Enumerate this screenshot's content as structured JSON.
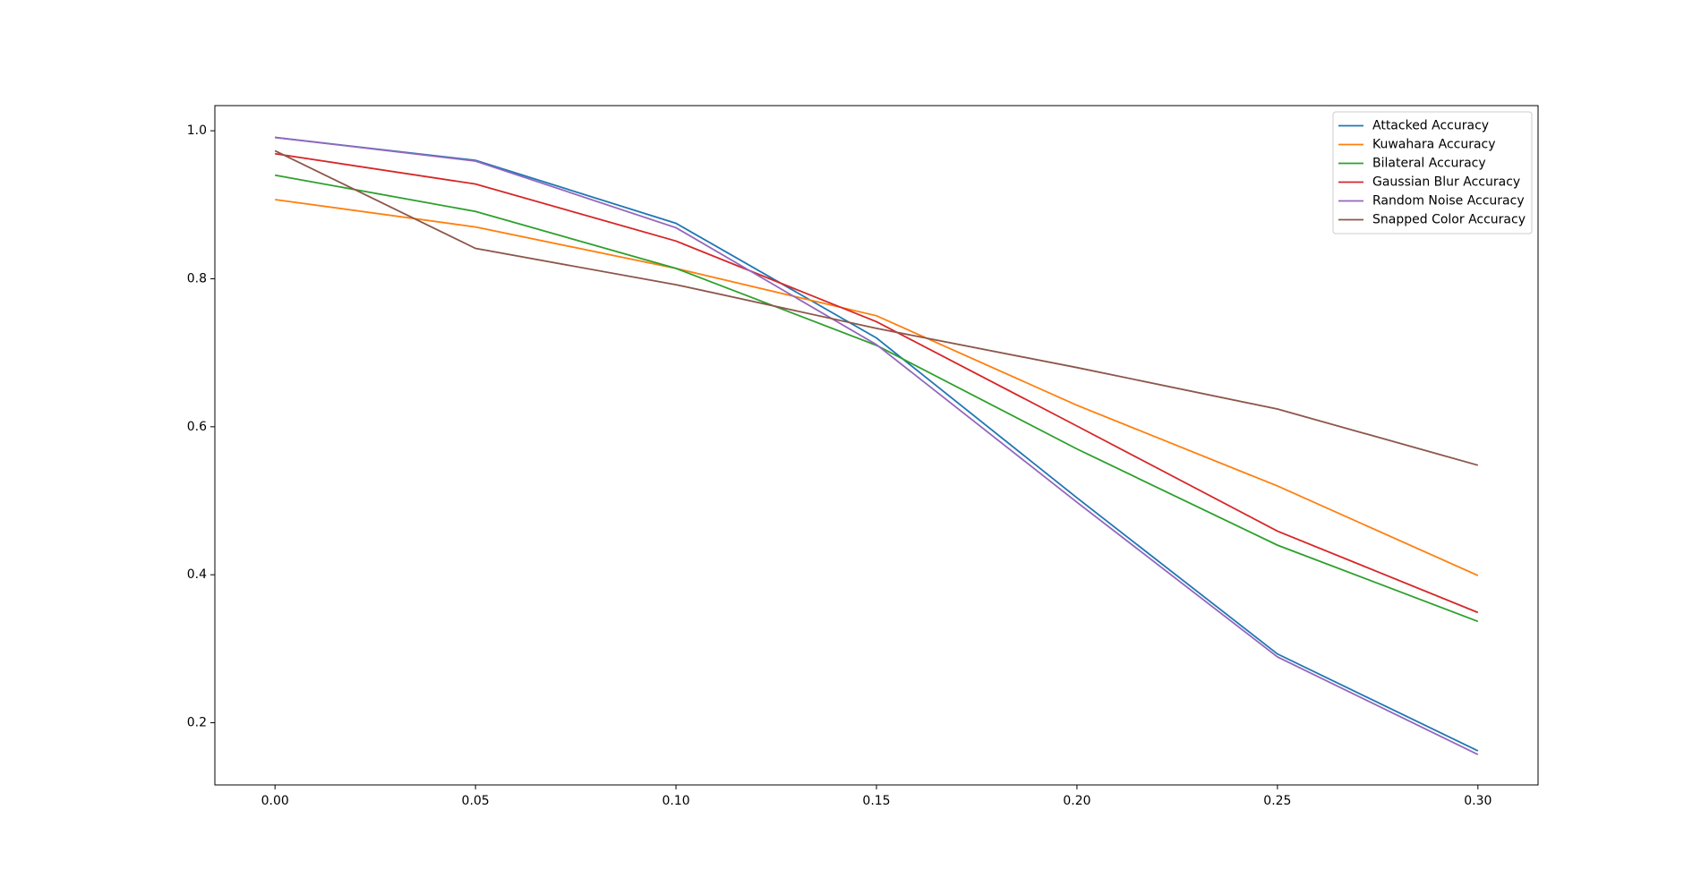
{
  "chart_data": {
    "type": "line",
    "x": [
      0.0,
      0.05,
      0.1,
      0.15,
      0.2,
      0.25,
      0.3
    ],
    "xlim": [
      -0.015,
      0.315
    ],
    "xticks": [
      {
        "value": 0.0,
        "label": "0.00"
      },
      {
        "value": 0.05,
        "label": "0.05"
      },
      {
        "value": 0.1,
        "label": "0.10"
      },
      {
        "value": 0.15,
        "label": "0.15"
      },
      {
        "value": 0.2,
        "label": "0.20"
      },
      {
        "value": 0.25,
        "label": "0.25"
      },
      {
        "value": 0.3,
        "label": "0.30"
      }
    ],
    "ylim": [
      0.116,
      1.034
    ],
    "yticks": [
      0.2,
      0.4,
      0.6,
      0.8,
      {
        "value": 1.0,
        "label": "1.0"
      }
    ],
    "legend": "upper right",
    "grid": false,
    "series": [
      {
        "name": "Attacked Accuracy",
        "color": "#1f77b4",
        "values": [
          0.991,
          0.96,
          0.875,
          0.72,
          0.504,
          0.293,
          0.162
        ]
      },
      {
        "name": "Kuwahara Accuracy",
        "color": "#ff7f0e",
        "values": [
          0.907,
          0.87,
          0.814,
          0.75,
          0.629,
          0.52,
          0.399
        ]
      },
      {
        "name": "Bilateral Accuracy",
        "color": "#2ca02c",
        "values": [
          0.94,
          0.891,
          0.814,
          0.71,
          0.57,
          0.44,
          0.337
        ]
      },
      {
        "name": "Gaussian Blur Accuracy",
        "color": "#d62728",
        "values": [
          0.969,
          0.928,
          0.851,
          0.742,
          0.601,
          0.459,
          0.349
        ]
      },
      {
        "name": "Random Noise Accuracy",
        "color": "#9467bd",
        "values": [
          0.991,
          0.959,
          0.869,
          0.711,
          0.498,
          0.289,
          0.157
        ]
      },
      {
        "name": "Snapped Color Accuracy",
        "color": "#8c564b",
        "values": [
          0.973,
          0.841,
          0.792,
          0.733,
          0.68,
          0.624,
          0.548
        ]
      }
    ]
  }
}
